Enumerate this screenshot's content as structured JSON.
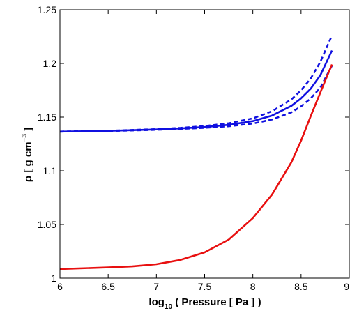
{
  "chart_data": {
    "type": "line",
    "title": "",
    "xlabel": {
      "prefix": "log",
      "subscript": "10",
      "suffix": " ( Pressure [ Pa ] )"
    },
    "ylabel": {
      "prefix": "ρ [ g cm",
      "superscript": "−3",
      "suffix": " ]"
    },
    "xlim": [
      6,
      9
    ],
    "ylim": [
      1.0,
      1.25
    ],
    "xticks": [
      6,
      6.5,
      7,
      7.5,
      8,
      8.5,
      9
    ],
    "xtick_labels": [
      "6",
      "6.5",
      "7",
      "7.5",
      "8",
      "8.5",
      "9"
    ],
    "yticks": [
      1.0,
      1.05,
      1.1,
      1.15,
      1.2,
      1.25
    ],
    "ytick_labels": [
      "1",
      "1.05",
      "1.1",
      "1.15",
      "1.2",
      "1.25"
    ],
    "grid": false,
    "series": [
      {
        "color": "#1010e0",
        "style": "solid",
        "x": [
          6.0,
          6.5,
          7.0,
          7.25,
          7.5,
          7.75,
          8.0,
          8.2,
          8.4,
          8.5,
          8.6,
          8.7,
          8.82
        ],
        "y": [
          1.1365,
          1.1372,
          1.1385,
          1.1395,
          1.1408,
          1.1428,
          1.1463,
          1.1515,
          1.1605,
          1.1675,
          1.1765,
          1.189,
          1.212
        ]
      },
      {
        "color": "#1010e0",
        "style": "dashed",
        "x": [
          6.0,
          6.5,
          7.0,
          7.25,
          7.5,
          7.75,
          8.0,
          8.2,
          8.4,
          8.5,
          8.6,
          8.7,
          8.82
        ],
        "y": [
          1.1365,
          1.1373,
          1.1388,
          1.14,
          1.1417,
          1.1443,
          1.1488,
          1.1555,
          1.1665,
          1.175,
          1.186,
          1.2015,
          1.226
        ]
      },
      {
        "color": "#1010e0",
        "style": "dashed",
        "x": [
          6.0,
          6.5,
          7.0,
          7.25,
          7.5,
          7.75,
          8.0,
          8.2,
          8.4,
          8.5,
          8.6,
          8.7,
          8.82
        ],
        "y": [
          1.1365,
          1.137,
          1.1382,
          1.139,
          1.14,
          1.1415,
          1.144,
          1.1478,
          1.1545,
          1.16,
          1.1675,
          1.1775,
          1.198
        ]
      },
      {
        "color": "#e81010",
        "style": "solid",
        "x": [
          6.0,
          6.5,
          6.75,
          7.0,
          7.25,
          7.5,
          7.75,
          8.0,
          8.2,
          8.4,
          8.5,
          8.6,
          8.7,
          8.82
        ],
        "y": [
          1.0085,
          1.01,
          1.011,
          1.013,
          1.017,
          1.024,
          1.036,
          1.056,
          1.078,
          1.108,
          1.128,
          1.151,
          1.173,
          1.199
        ]
      }
    ]
  }
}
